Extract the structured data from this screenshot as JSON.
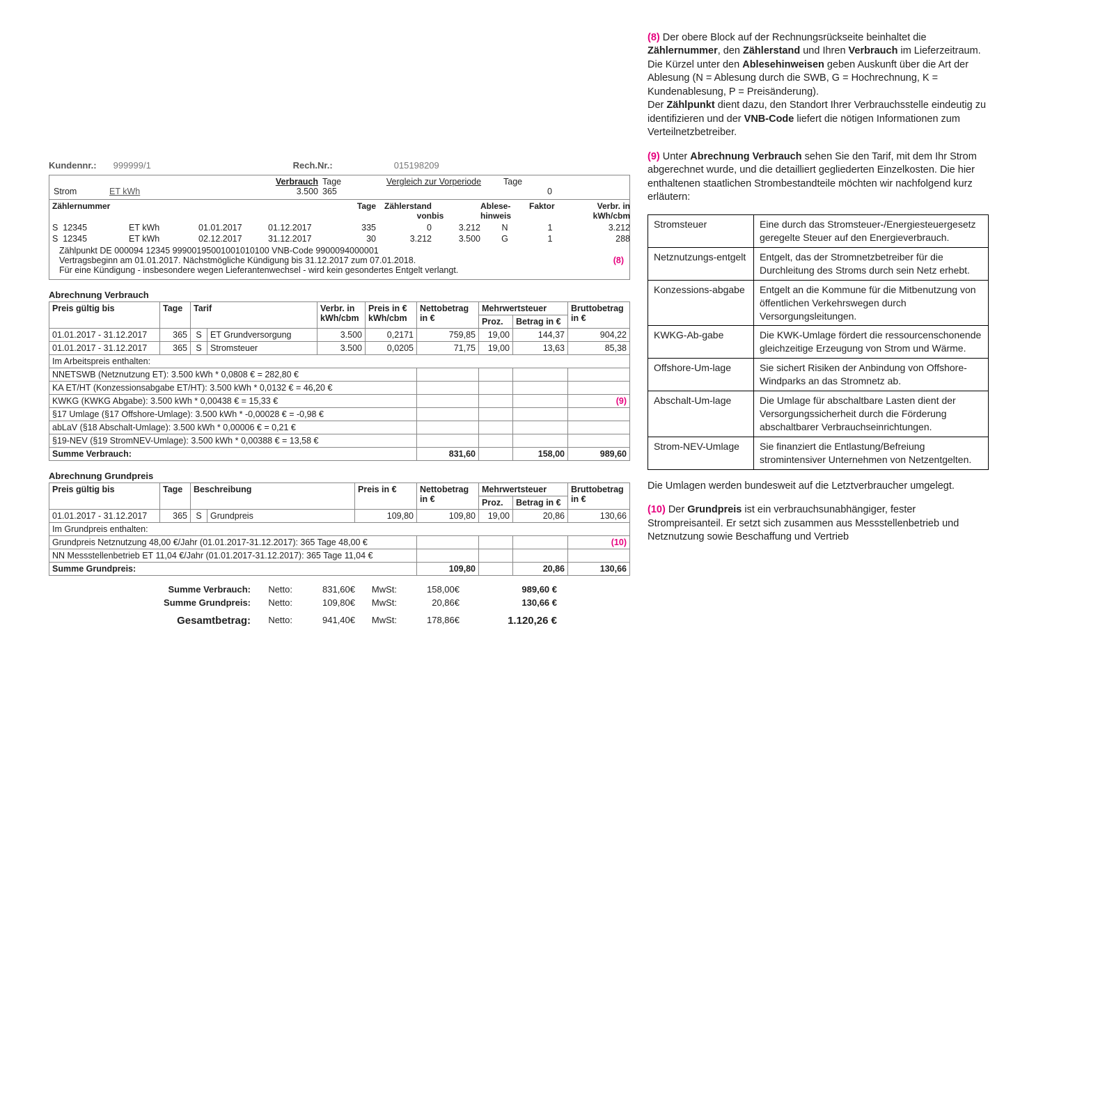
{
  "colors": {
    "accent": "#e6007e",
    "border": "#888888",
    "text": "#222222",
    "muted": "#777777"
  },
  "header": {
    "kundennr_label": "Kundennr.:",
    "kundennr": "999999/1",
    "rechnr_label": "Rech.Nr.:",
    "rechnr": "015198209"
  },
  "topblock": {
    "verbrauch_label": "Verbrauch",
    "tage_label": "Tage",
    "vergleich_label": "Vergleich zur Vorperiode",
    "tage2_label": "Tage",
    "strom": "Strom",
    "etkwh": "ET kWh",
    "verbrauch_val": "3.500",
    "tage_val": "365",
    "vergleich_val": "",
    "tage2_val": "0"
  },
  "meter": {
    "head": {
      "c1": "Zählernummer",
      "c2": "",
      "c3": "",
      "c4": "",
      "c5": "Tage",
      "c6a": "Zählerstand",
      "c6b": "von",
      "c7": "bis",
      "c8a": "Ablese-",
      "c8b": "hinweis",
      "c9": "Faktor",
      "c10a": "Verbr. in",
      "c10b": "kWh/cbm"
    },
    "rows": [
      {
        "s": "S",
        "nr": "12345",
        "unit": "ET kWh",
        "from": "01.01.2017",
        "to": "01.12.2017",
        "tage": "335",
        "von": "0",
        "bis": "3.212",
        "hint": "N",
        "faktor": "1",
        "verbr": "3.212"
      },
      {
        "s": "S",
        "nr": "12345",
        "unit": "ET kWh",
        "from": "02.12.2017",
        "to": "31.12.2017",
        "tage": "30",
        "von": "3.212",
        "bis": "3.500",
        "hint": "G",
        "faktor": "1",
        "verbr": "288"
      }
    ],
    "foot1": "Zählpunkt DE 000094 12345 99900195001001010100 VNB-Code 9900094000001",
    "foot2": "Vertragsbeginn am 01.01.2017. Nächstmögliche Kündigung bis 31.12.2017 zum 07.01.2018.",
    "foot3": "Für eine Kündigung - insbesondere wegen Lieferantenwechsel - wird kein gesondertes Entgelt verlangt.",
    "marker": "(8)"
  },
  "verbrauch": {
    "title": "Abrechnung Verbrauch",
    "head": {
      "c1": "Preis gültig bis",
      "c2": "Tage",
      "c3": "Tarif",
      "c4a": "Verbr. in",
      "c4b": "kWh/cbm",
      "c5a": "Preis in €",
      "c5b": "kWh/cbm",
      "c6a": "Nettobetrag",
      "c6b": "in €",
      "c7": "Mehrwertsteuer",
      "c7a": "Proz.",
      "c7b": "Betrag in €",
      "c8a": "Bruttobetrag",
      "c8b": "in €"
    },
    "rows": [
      {
        "date": "01.01.2017 - 31.12.2017",
        "tage": "365",
        "s": "S",
        "tarif": "ET Grundversorgung",
        "verbr": "3.500",
        "preis": "0,2171",
        "netto": "759,85",
        "proz": "19,00",
        "mwst": "144,37",
        "brutto": "904,22"
      },
      {
        "date": "01.01.2017 - 31.12.2017",
        "tage": "365",
        "s": "S",
        "tarif": "Stromsteuer",
        "verbr": "3.500",
        "preis": "0,0205",
        "netto": "71,75",
        "proz": "19,00",
        "mwst": "13,63",
        "brutto": "85,38"
      }
    ],
    "enthalten_label": "Im Arbeitspreis enthalten:",
    "enthalten": [
      "NNETSWB (Netznutzung ET): 3.500 kWh * 0,0808 € = 282,80 €",
      "KA ET/HT (Konzessionsabgabe ET/HT): 3.500 kWh * 0,0132 € = 46,20 €",
      "KWKG (KWKG Abgabe): 3.500 kWh * 0,00438 € = 15,33 €",
      "§17 Umlage (§17 Offshore-Umlage): 3.500 kWh * -0,00028 € = -0,98 €",
      "abLaV (§18 Abschalt-Umlage): 3.500 kWh * 0,00006 € = 0,21 €",
      "§19-NEV (§19 StromNEV-Umlage): 3.500 kWh * 0,00388 € = 13,58 €"
    ],
    "marker": "(9)",
    "sum_label": "Summe Verbrauch:",
    "sum_netto": "831,60",
    "sum_mwst": "158,00",
    "sum_brutto": "989,60"
  },
  "grundpreis": {
    "title": "Abrechnung Grundpreis",
    "head": {
      "c1": "Preis gültig bis",
      "c2": "Tage",
      "c3": "Beschreibung",
      "c5": "Preis in €",
      "c6a": "Nettobetrag",
      "c6b": "in €",
      "c7": "Mehrwertsteuer",
      "c7a": "Proz.",
      "c7b": "Betrag in €",
      "c8a": "Bruttobetrag",
      "c8b": "in €"
    },
    "row": {
      "date": "01.01.2017 - 31.12.2017",
      "tage": "365",
      "s": "S",
      "beschr": "Grundpreis",
      "preis": "109,80",
      "netto": "109,80",
      "proz": "19,00",
      "mwst": "20,86",
      "brutto": "130,66"
    },
    "enthalten_label": "Im Grundpreis enthalten:",
    "enthalten": [
      "Grundpreis Netznutzung 48,00 €/Jahr (01.01.2017-31.12.2017): 365 Tage 48,00 €",
      "NN Messstellenbetrieb ET 11,04 €/Jahr (01.01.2017-31.12.2017): 365 Tage 11,04 €"
    ],
    "marker": "(10)",
    "sum_label": "Summe Grundpreis:",
    "sum_netto": "109,80",
    "sum_mwst": "20,86",
    "sum_brutto": "130,66"
  },
  "totals": {
    "l1": {
      "label": "Summe Verbrauch:",
      "nlabel": "Netto:",
      "netto": "831,60€",
      "mlabel": "MwSt:",
      "mwst": "158,00€",
      "brutto": "989,60 €"
    },
    "l2": {
      "label": "Summe Grundpreis:",
      "nlabel": "Netto:",
      "netto": "109,80€",
      "mlabel": "MwSt:",
      "mwst": "20,86€",
      "brutto": "130,66 €"
    },
    "l3": {
      "label": "Gesamtbetrag:",
      "nlabel": "Netto:",
      "netto": "941,40€",
      "mlabel": "MwSt:",
      "mwst": "178,86€",
      "brutto": "1.120,26 €"
    }
  },
  "explain": {
    "p8": {
      "marker": "(8)",
      "t1": " Der obere Block auf der Rechnungsrückseite beinhaltet die ",
      "b1": "Zählernummer",
      "t2": ", den ",
      "b2": "Zählerstand",
      "t3": " und Ihren ",
      "b3": "Verbrauch",
      "t4": " im Lieferzeitraum. Die Kürzel unter den ",
      "b4": "Ablesehinweisen",
      "t5": " geben Auskunft über die Art der Ablesung (N = Ablesung durch die SWB, G = Hochrechnung, K = Kundenablesung, P = Preisänderung).",
      "t6": "Der ",
      "b5": "Zählpunkt",
      "t7": " dient dazu, den Standort Ihrer Verbrauchsstelle eindeutig zu identifizieren und der ",
      "b6": "VNB-Code",
      "t8": " liefert die nötigen Informationen zum  Verteilnetzbetreiber."
    },
    "p9": {
      "marker": "(9)",
      "t1": " Unter ",
      "b1": "Abrechnung Verbrauch",
      "t2": " sehen Sie den Tarif, mit dem Ihr Strom abgerechnet wurde, und die detailliert gegliederten Einzelkosten. Die hier enthaltenen staatlichen Strombestandteile möchten wir nachfolgend kurz erläutern:"
    },
    "glossary": [
      {
        "k": "Stromsteuer",
        "v": "Eine durch das Stromsteuer-/Energiesteuergesetz geregelte Steuer auf den Energieverbrauch."
      },
      {
        "k": "Netznutzungs-entgelt",
        "v": "Entgelt, das der Stromnetzbetreiber für die Durchleitung des Stroms durch sein Netz erhebt."
      },
      {
        "k": "Konzessions-abgabe",
        "v": "Entgelt an die Kommune für die Mitbenutzung von öffentlichen Verkehrswegen durch Versorgungsleitungen."
      },
      {
        "k": "KWKG-Ab-gabe",
        "v": "Die KWK-Umlage fördert die ressourcenschonende gleichzeitige Erzeugung von Strom und Wärme."
      },
      {
        "k": "Offshore-Um-lage",
        "v": "Sie sichert Risiken der Anbindung von Offshore-Windparks an das Stromnetz ab."
      },
      {
        "k": "Abschalt-Um-lage",
        "v": "Die Umlage für abschaltbare Lasten dient der Versorgungssicherheit durch die Förderung abschaltbarer Verbrauchseinrichtungen."
      },
      {
        "k": "Strom-NEV-Umlage",
        "v": "Sie finanziert die Entlastung/Befreiung stromintensiver Unternehmen von Netzentgelten."
      }
    ],
    "after_gloss": "Die Umlagen werden bundesweit auf die Letztverbraucher umgelegt.",
    "p10": {
      "marker": "(10)",
      "t1": " Der ",
      "b1": "Grundpreis",
      "t2": " ist ein verbrauchsunabhängiger, fester Strompreisanteil. Er setzt sich zusammen aus Messstellenbetrieb und Netznutzung sowie Beschaffung und Vertrieb"
    }
  }
}
